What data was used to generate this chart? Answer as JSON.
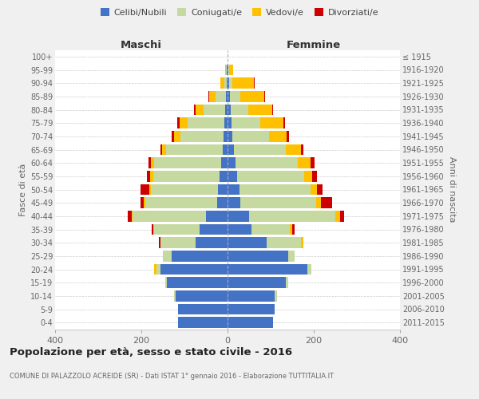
{
  "age_groups": [
    "0-4",
    "5-9",
    "10-14",
    "15-19",
    "20-24",
    "25-29",
    "30-34",
    "35-39",
    "40-44",
    "45-49",
    "50-54",
    "55-59",
    "60-64",
    "65-69",
    "70-74",
    "75-79",
    "80-84",
    "85-89",
    "90-94",
    "95-99",
    "100+"
  ],
  "birth_years": [
    "2011-2015",
    "2006-2010",
    "2001-2005",
    "1996-2000",
    "1991-1995",
    "1986-1990",
    "1981-1985",
    "1976-1980",
    "1971-1975",
    "1966-1970",
    "1961-1965",
    "1956-1960",
    "1951-1955",
    "1946-1950",
    "1941-1945",
    "1936-1940",
    "1931-1935",
    "1926-1930",
    "1921-1925",
    "1916-1920",
    "≤ 1915"
  ],
  "maschi": {
    "celibi": [
      115,
      115,
      120,
      140,
      155,
      130,
      75,
      65,
      50,
      25,
      22,
      18,
      15,
      12,
      10,
      8,
      5,
      3,
      2,
      1,
      0
    ],
    "coniugati": [
      0,
      0,
      5,
      5,
      10,
      20,
      80,
      105,
      170,
      165,
      155,
      155,
      155,
      130,
      100,
      85,
      50,
      25,
      5,
      2,
      0
    ],
    "vedovi": [
      0,
      0,
      0,
      0,
      5,
      0,
      0,
      2,
      3,
      4,
      4,
      6,
      8,
      10,
      15,
      18,
      20,
      15,
      10,
      3,
      0
    ],
    "divorziati": [
      0,
      0,
      0,
      0,
      0,
      0,
      4,
      4,
      8,
      8,
      20,
      8,
      6,
      4,
      4,
      5,
      3,
      2,
      0,
      0,
      0
    ]
  },
  "femmine": {
    "nubili": [
      105,
      110,
      110,
      135,
      185,
      140,
      90,
      55,
      50,
      30,
      28,
      22,
      18,
      15,
      12,
      10,
      8,
      5,
      3,
      1,
      0
    ],
    "coniugate": [
      0,
      0,
      5,
      5,
      10,
      15,
      80,
      90,
      200,
      175,
      165,
      155,
      145,
      120,
      85,
      65,
      40,
      25,
      8,
      2,
      0
    ],
    "vedove": [
      0,
      0,
      0,
      0,
      0,
      0,
      5,
      5,
      12,
      12,
      15,
      20,
      30,
      35,
      40,
      55,
      55,
      55,
      50,
      10,
      0
    ],
    "divorziate": [
      0,
      0,
      0,
      0,
      0,
      0,
      0,
      5,
      8,
      25,
      12,
      10,
      8,
      5,
      5,
      4,
      3,
      2,
      2,
      0,
      0
    ]
  },
  "colors": {
    "celibi_nubili": "#4472c4",
    "coniugati": "#c5d9a0",
    "vedovi": "#ffc000",
    "divorziati": "#cc0000"
  },
  "title": "Popolazione per età, sesso e stato civile - 2016",
  "subtitle": "COMUNE DI PALAZZOLO ACREIDE (SR) - Dati ISTAT 1° gennaio 2016 - Elaborazione TUTTITALIA.IT",
  "xlabel_left": "Maschi",
  "xlabel_right": "Femmine",
  "ylabel": "Fasce di età",
  "ylabel_right": "Anni di nascita",
  "xlim": 400,
  "bg_color": "#f0f0f0",
  "plot_bg": "#ffffff",
  "grid_color": "#cccccc"
}
